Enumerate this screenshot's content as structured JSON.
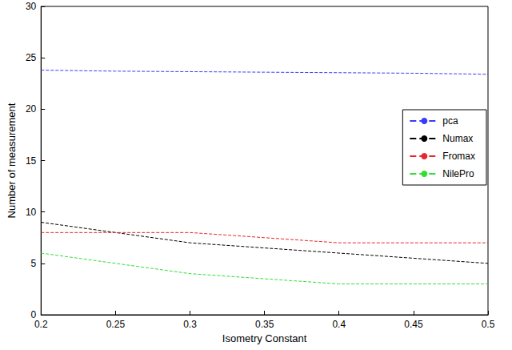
{
  "chart_data": {
    "type": "line",
    "x_label": "Isometry Constant",
    "y_label": "Number of measurement",
    "x": [
      0.2,
      0.25,
      0.3,
      0.35,
      0.4,
      0.45,
      0.5
    ],
    "series": [
      {
        "name": "pca",
        "color": "#3a3aff",
        "line_style": "dashed",
        "values": [
          23.8,
          23.7,
          23.65,
          23.6,
          23.55,
          23.5,
          23.4
        ]
      },
      {
        "name": "Numax",
        "color": "#000000",
        "line_style": "dashed",
        "values": [
          9,
          8,
          7,
          6.5,
          6,
          5.5,
          5
        ]
      },
      {
        "name": "Fromax",
        "color": "#e8262d",
        "line_style": "dashed",
        "values": [
          8,
          8,
          8,
          7.5,
          7,
          7,
          7
        ]
      },
      {
        "name": "NilePro",
        "color": "#33dd33",
        "line_style": "dashed",
        "values": [
          6,
          5,
          4,
          3.5,
          3,
          3,
          3
        ]
      }
    ],
    "xlim": [
      0.2,
      0.5
    ],
    "xticks": [
      0.2,
      0.25,
      0.3,
      0.35,
      0.4,
      0.45,
      0.5
    ],
    "ylim": [
      0,
      30
    ],
    "yticks": [
      0,
      5,
      10,
      15,
      20,
      25,
      30
    ],
    "grid": false,
    "legend": "right"
  }
}
